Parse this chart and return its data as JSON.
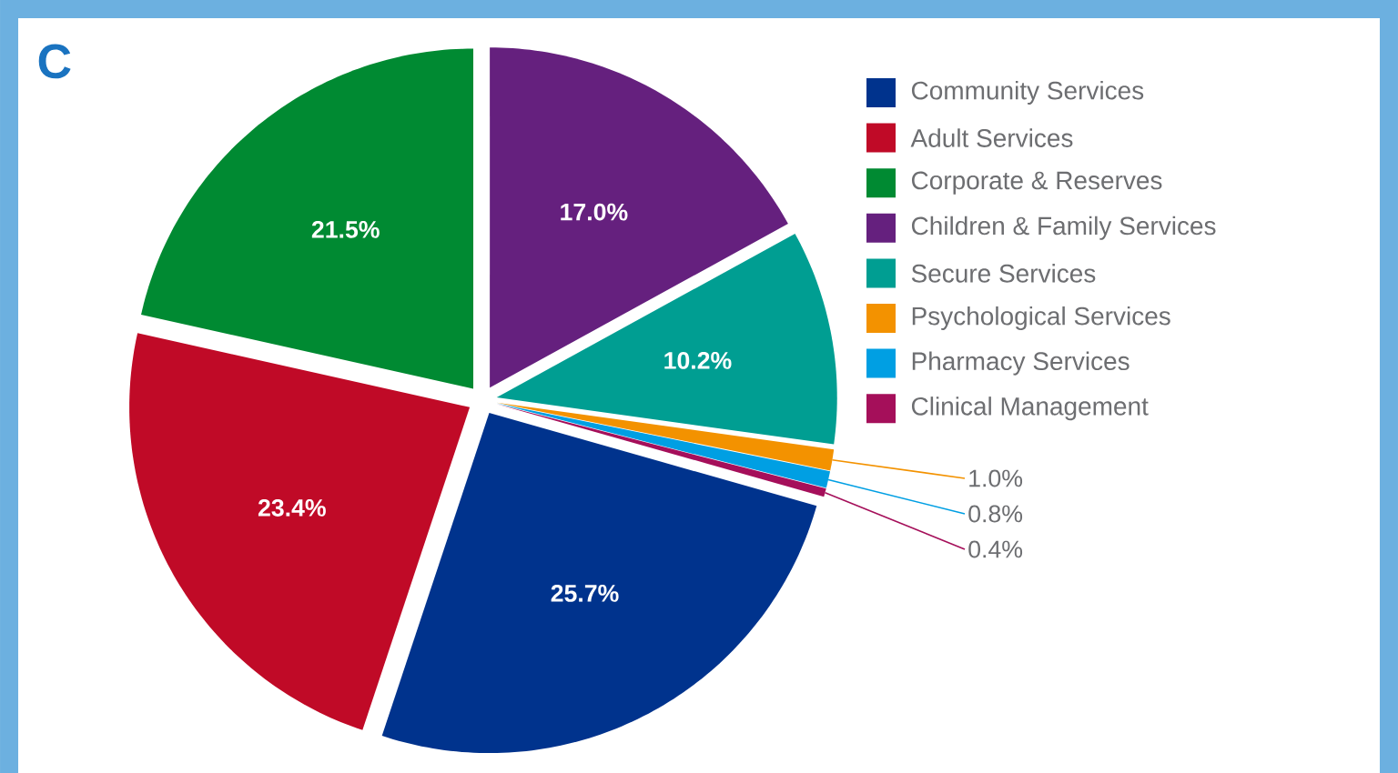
{
  "chart_data": {
    "type": "pie",
    "title": "C",
    "categories": [
      "Community Services",
      "Adult Services",
      "Corporate & Reserves",
      "Children & Family Services",
      "Secure Services",
      "Psychological Services",
      "Pharmacy Services",
      "Clinical Management"
    ],
    "values": [
      25.7,
      23.4,
      21.5,
      17.0,
      10.2,
      1.0,
      0.8,
      0.4
    ],
    "colors": [
      "#00338d",
      "#c00a27",
      "#008a32",
      "#65207e",
      "#009e92",
      "#f39200",
      "#009fe3",
      "#a50f5a"
    ],
    "value_labels": [
      "25.7%",
      "23.4%",
      "21.5%",
      "17.0%",
      "10.2%",
      "1.0%",
      "0.8%",
      "0.4%"
    ],
    "legend": "right"
  }
}
